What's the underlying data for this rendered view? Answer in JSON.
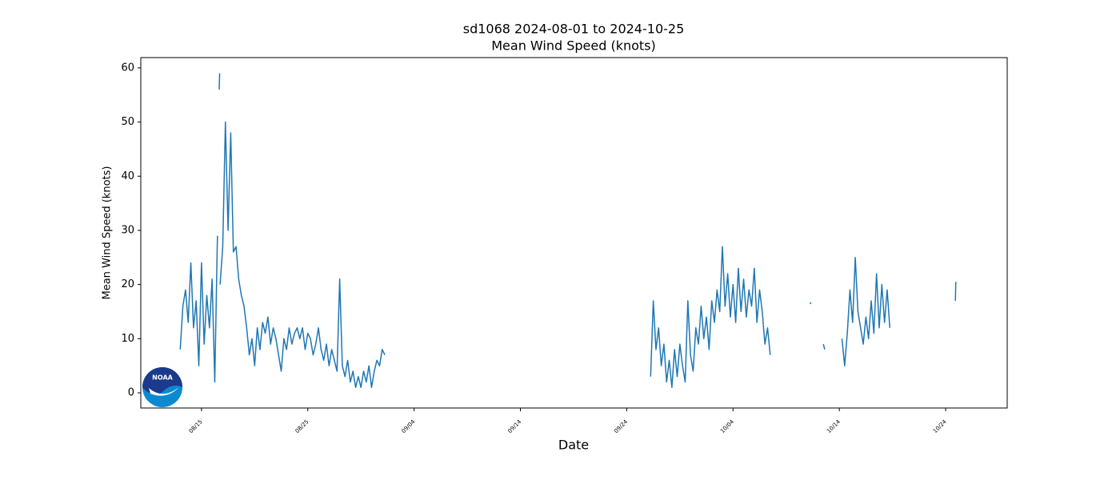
{
  "chart_data": {
    "type": "line",
    "title": "sd1068 2024-08-01 to 2024-10-25",
    "subtitle": "Mean Wind Speed (knots)",
    "x_label": "Date",
    "y_label": "Mean Wind Speed (knots)",
    "xlim": [
      "2024-08-09T07:00",
      "2024-10-29T19:00"
    ],
    "xticks": [
      {
        "value": "2024-08-15T00:00",
        "label": "08/15"
      },
      {
        "value": "2024-08-25T00:00",
        "label": "08/25"
      },
      {
        "value": "2024-09-04T00:00",
        "label": "09/04"
      },
      {
        "value": "2024-09-14T00:00",
        "label": "09/14"
      },
      {
        "value": "2024-09-24T00:00",
        "label": "09/24"
      },
      {
        "value": "2024-10-04T00:00",
        "label": "10/04"
      },
      {
        "value": "2024-10-14T00:00",
        "label": "10/14"
      },
      {
        "value": "2024-10-24T00:00",
        "label": "10/24"
      }
    ],
    "ylim": [
      -2.8,
      61.9
    ],
    "yticks": [
      0,
      10,
      20,
      30,
      40,
      50,
      60
    ],
    "grid": false,
    "x": [
      "2024-08-13T00:00",
      "2024-08-13T06:00",
      "2024-08-13T12:00",
      "2024-08-13T18:00",
      "2024-08-14T00:00",
      "2024-08-14T06:00",
      "2024-08-14T12:00",
      "2024-08-14T18:00",
      "2024-08-15T00:00",
      "2024-08-15T06:00",
      "2024-08-15T12:00",
      "2024-08-15T18:00",
      "2024-08-16T00:00",
      "2024-08-16T06:00",
      "2024-08-16T12:00",
      "2024-08-16T15:00",
      "2024-08-16T16:00",
      "2024-08-16T17:00",
      "2024-08-16T17:30",
      "2024-08-16T18:00",
      "2024-08-17T00:00",
      "2024-08-17T06:00",
      "2024-08-17T12:00",
      "2024-08-17T18:00",
      "2024-08-18T00:00",
      "2024-08-18T06:00",
      "2024-08-18T12:00",
      "2024-08-18T18:00",
      "2024-08-19T00:00",
      "2024-08-19T06:00",
      "2024-08-19T12:00",
      "2024-08-19T18:00",
      "2024-08-20T00:00",
      "2024-08-20T06:00",
      "2024-08-20T12:00",
      "2024-08-20T18:00",
      "2024-08-21T00:00",
      "2024-08-21T06:00",
      "2024-08-21T12:00",
      "2024-08-21T18:00",
      "2024-08-22T00:00",
      "2024-08-22T06:00",
      "2024-08-22T12:00",
      "2024-08-22T18:00",
      "2024-08-23T00:00",
      "2024-08-23T06:00",
      "2024-08-23T12:00",
      "2024-08-23T18:00",
      "2024-08-24T00:00",
      "2024-08-24T06:00",
      "2024-08-24T12:00",
      "2024-08-24T18:00",
      "2024-08-25T00:00",
      "2024-08-25T06:00",
      "2024-08-25T12:00",
      "2024-08-25T18:00",
      "2024-08-26T00:00",
      "2024-08-26T06:00",
      "2024-08-26T12:00",
      "2024-08-26T18:00",
      "2024-08-27T00:00",
      "2024-08-27T06:00",
      "2024-08-27T12:00",
      "2024-08-27T18:00",
      "2024-08-28T00:00",
      "2024-08-28T06:00",
      "2024-08-28T12:00",
      "2024-08-28T18:00",
      "2024-08-29T00:00",
      "2024-08-29T06:00",
      "2024-08-29T12:00",
      "2024-08-29T18:00",
      "2024-08-30T00:00",
      "2024-08-30T06:00",
      "2024-08-30T12:00",
      "2024-08-30T18:00",
      "2024-08-31T00:00",
      "2024-08-31T06:00",
      "2024-08-31T12:00",
      "2024-08-31T18:00",
      "2024-09-01T00:00",
      "2024-09-01T06:00",
      "2024-09-10T00:00",
      "2024-09-26T06:00",
      "2024-09-26T12:00",
      "2024-09-26T18:00",
      "2024-09-27T00:00",
      "2024-09-27T06:00",
      "2024-09-27T12:00",
      "2024-09-27T18:00",
      "2024-09-28T00:00",
      "2024-09-28T06:00",
      "2024-09-28T12:00",
      "2024-09-28T18:00",
      "2024-09-29T00:00",
      "2024-09-29T06:00",
      "2024-09-29T12:00",
      "2024-09-29T18:00",
      "2024-09-30T00:00",
      "2024-09-30T06:00",
      "2024-09-30T12:00",
      "2024-09-30T18:00",
      "2024-10-01T00:00",
      "2024-10-01T06:00",
      "2024-10-01T12:00",
      "2024-10-01T18:00",
      "2024-10-02T00:00",
      "2024-10-02T06:00",
      "2024-10-02T12:00",
      "2024-10-02T18:00",
      "2024-10-03T00:00",
      "2024-10-03T06:00",
      "2024-10-03T12:00",
      "2024-10-03T18:00",
      "2024-10-04T00:00",
      "2024-10-04T06:00",
      "2024-10-04T12:00",
      "2024-10-04T18:00",
      "2024-10-05T00:00",
      "2024-10-05T06:00",
      "2024-10-05T12:00",
      "2024-10-05T18:00",
      "2024-10-06T00:00",
      "2024-10-06T06:00",
      "2024-10-06T12:00",
      "2024-10-06T18:00",
      "2024-10-07T00:00",
      "2024-10-07T06:00",
      "2024-10-07T12:00",
      "2024-10-09T00:00",
      "2024-10-11T06:00",
      "2024-10-11T08:00",
      "2024-10-12T00:00",
      "2024-10-12T12:00",
      "2024-10-12T15:00",
      "2024-10-13T12:00",
      "2024-10-14T06:00",
      "2024-10-14T12:00",
      "2024-10-14T18:00",
      "2024-10-15T00:00",
      "2024-10-15T06:00",
      "2024-10-15T12:00",
      "2024-10-15T18:00",
      "2024-10-16T00:00",
      "2024-10-16T06:00",
      "2024-10-16T12:00",
      "2024-10-16T18:00",
      "2024-10-17T00:00",
      "2024-10-17T06:00",
      "2024-10-17T12:00",
      "2024-10-17T18:00",
      "2024-10-18T00:00",
      "2024-10-18T06:00",
      "2024-10-18T12:00",
      "2024-10-18T18:00",
      "2024-10-21T00:00",
      "2024-10-24T22:00",
      "2024-10-24T23:00"
    ],
    "series": [
      {
        "name": "Mean Wind Speed",
        "color": "#1f77b4",
        "values": [
          8,
          16,
          19,
          13,
          24,
          12,
          17,
          5,
          24,
          9,
          18,
          12,
          21,
          2,
          29,
          null,
          56,
          59,
          null,
          20,
          27,
          50,
          30,
          48,
          26,
          27,
          21,
          18,
          16,
          12,
          7,
          10,
          5,
          12,
          8,
          13,
          11,
          14,
          9,
          12,
          10,
          7,
          4,
          10,
          8,
          12,
          9,
          11,
          12,
          10,
          12,
          8,
          11,
          10,
          7,
          9,
          12,
          8,
          6,
          9,
          5,
          8,
          6,
          4,
          21,
          5,
          3,
          6,
          2,
          4,
          1,
          3,
          1,
          4,
          2,
          5,
          1,
          4,
          6,
          5,
          8,
          7,
          null,
          3,
          17,
          8,
          12,
          5,
          9,
          2,
          6,
          1,
          8,
          3,
          9,
          5,
          2,
          17,
          7,
          4,
          12,
          9,
          16,
          10,
          14,
          8,
          17,
          13,
          19,
          15,
          27,
          16,
          22,
          14,
          20,
          13,
          23,
          15,
          21,
          14,
          19,
          16,
          23,
          13,
          19,
          15,
          9,
          12,
          7,
          null,
          16.7,
          16.4,
          null,
          9,
          8,
          null,
          10,
          5,
          11,
          19,
          13,
          25,
          15,
          12,
          9,
          14,
          10,
          17,
          11,
          22,
          12,
          20,
          13,
          19,
          12,
          null,
          17,
          20.5
        ]
      }
    ]
  }
}
